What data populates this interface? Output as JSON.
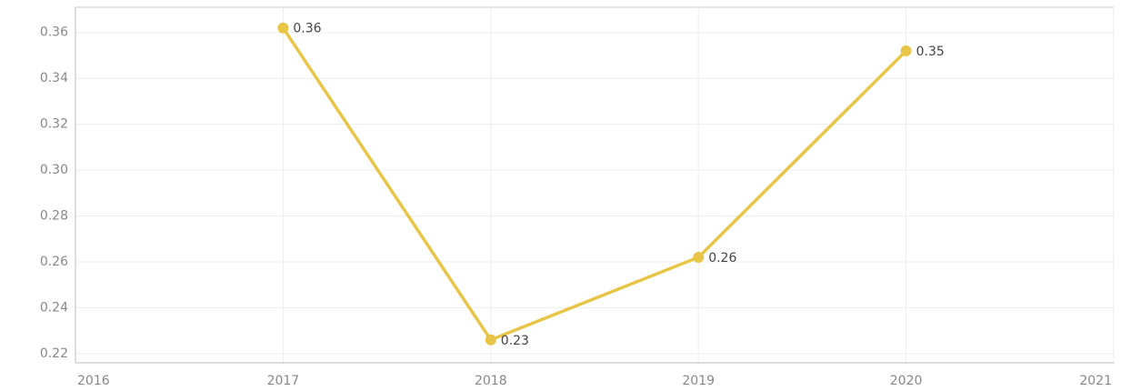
{
  "chart_data": {
    "type": "line",
    "x": [
      2017,
      2018,
      2019,
      2020
    ],
    "values": [
      0.362,
      0.226,
      0.262,
      0.352
    ],
    "value_labels": [
      "0.36",
      "0.23",
      "0.26",
      "0.35"
    ],
    "color": "#e8c547",
    "xlim": [
      2016,
      2021
    ],
    "xticks": [
      2016,
      2017,
      2018,
      2019,
      2020,
      2021
    ],
    "ylim": [
      0.216,
      0.371
    ],
    "yticks": [
      0.22,
      0.24,
      0.26,
      0.28,
      {
        "value": 0.3,
        "label": "0.30"
      },
      0.32,
      0.34,
      0.36
    ],
    "grid": true
  }
}
